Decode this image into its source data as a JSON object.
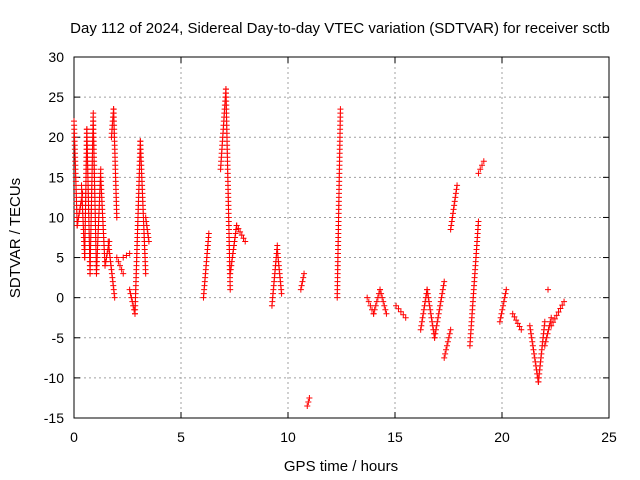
{
  "chart_data": {
    "type": "scatter",
    "title": "Day 112 of 2024, Sidereal Day-to-day VTEC variation (SDTVAR) for receiver sctb",
    "xlabel": "GPS time / hours",
    "ylabel": "SDTVAR / TECUs",
    "xlim": [
      0,
      25
    ],
    "ylim": [
      -15,
      30
    ],
    "xticks": [
      0,
      5,
      10,
      15,
      20,
      25
    ],
    "yticks": [
      -15,
      -10,
      -5,
      0,
      5,
      10,
      15,
      20,
      25,
      30
    ],
    "grid": true,
    "marker": "+",
    "series": [
      {
        "name": "SDTVAR",
        "color": "#ff0000",
        "segments": [
          {
            "x": [
              0.0,
              0.15
            ],
            "y": [
              22,
              9
            ]
          },
          {
            "x": [
              0.15,
              0.4
            ],
            "y": [
              9,
              13
            ]
          },
          {
            "x": [
              0.35,
              0.5
            ],
            "y": [
              14,
              5
            ]
          },
          {
            "x": [
              0.5,
              0.6
            ],
            "y": [
              5,
              21
            ]
          },
          {
            "x": [
              0.6,
              0.75
            ],
            "y": [
              21,
              3
            ]
          },
          {
            "x": [
              0.75,
              0.9
            ],
            "y": [
              3,
              23
            ]
          },
          {
            "x": [
              0.9,
              1.05
            ],
            "y": [
              22,
              3
            ]
          },
          {
            "x": [
              1.05,
              1.25
            ],
            "y": [
              3,
              16
            ]
          },
          {
            "x": [
              1.25,
              1.45
            ],
            "y": [
              15,
              4
            ]
          },
          {
            "x": [
              1.45,
              1.65
            ],
            "y": [
              4,
              7
            ]
          },
          {
            "x": [
              1.6,
              1.9
            ],
            "y": [
              7,
              0
            ]
          },
          {
            "x": [
              1.75,
              1.85
            ],
            "y": [
              20,
              23.5
            ]
          },
          {
            "x": [
              1.85,
              2.0
            ],
            "y": [
              23.5,
              10
            ]
          },
          {
            "x": [
              2.0,
              2.3
            ],
            "y": [
              5,
              3
            ]
          },
          {
            "x": [
              2.3,
              2.6
            ],
            "y": [
              5,
              5.5
            ]
          },
          {
            "x": [
              2.6,
              2.85
            ],
            "y": [
              1,
              -2
            ]
          },
          {
            "x": [
              2.85,
              3.1
            ],
            "y": [
              -2,
              19.5
            ]
          },
          {
            "x": [
              3.1,
              3.35
            ],
            "y": [
              19.5,
              3
            ]
          },
          {
            "x": [
              3.35,
              3.5
            ],
            "y": [
              10,
              7
            ]
          },
          {
            "x": [
              6.05,
              6.3
            ],
            "y": [
              0,
              8
            ]
          },
          {
            "x": [
              6.85,
              7.1
            ],
            "y": [
              16,
              26
            ]
          },
          {
            "x": [
              7.1,
              7.3
            ],
            "y": [
              26,
              1
            ]
          },
          {
            "x": [
              7.3,
              7.6
            ],
            "y": [
              3,
              9
            ]
          },
          {
            "x": [
              7.6,
              8.0
            ],
            "y": [
              9,
              7
            ]
          },
          {
            "x": [
              9.25,
              9.5
            ],
            "y": [
              -1,
              6.5
            ]
          },
          {
            "x": [
              9.5,
              9.7
            ],
            "y": [
              6,
              0.5
            ]
          },
          {
            "x": [
              10.6,
              10.75
            ],
            "y": [
              1,
              3
            ]
          },
          {
            "x": [
              10.9,
              11.0
            ],
            "y": [
              -13.5,
              -12.5
            ]
          },
          {
            "x": [
              12.3,
              12.45
            ],
            "y": [
              0,
              23.5
            ]
          },
          {
            "x": [
              13.7,
              14.0
            ],
            "y": [
              0,
              -2
            ]
          },
          {
            "x": [
              14.0,
              14.3
            ],
            "y": [
              -2,
              1
            ]
          },
          {
            "x": [
              14.3,
              14.6
            ],
            "y": [
              1,
              -2
            ]
          },
          {
            "x": [
              15.05,
              15.5
            ],
            "y": [
              -1,
              -2.5
            ]
          },
          {
            "x": [
              16.2,
              16.5
            ],
            "y": [
              -4,
              1
            ]
          },
          {
            "x": [
              16.5,
              16.85
            ],
            "y": [
              1,
              -5
            ]
          },
          {
            "x": [
              16.85,
              17.3
            ],
            "y": [
              -5,
              2
            ]
          },
          {
            "x": [
              17.3,
              17.6
            ],
            "y": [
              -7.5,
              -4
            ]
          },
          {
            "x": [
              17.6,
              17.9
            ],
            "y": [
              8.5,
              14
            ]
          },
          {
            "x": [
              18.5,
              18.9
            ],
            "y": [
              -6,
              9.5
            ]
          },
          {
            "x": [
              18.9,
              19.15
            ],
            "y": [
              15.5,
              17
            ]
          },
          {
            "x": [
              19.9,
              20.2
            ],
            "y": [
              -3,
              1
            ]
          },
          {
            "x": [
              20.5,
              20.9
            ],
            "y": [
              -2,
              -4
            ]
          },
          {
            "x": [
              21.3,
              21.7
            ],
            "y": [
              -3.5,
              -10.5
            ]
          },
          {
            "x": [
              21.7,
              22.0
            ],
            "y": [
              -10.5,
              -3
            ]
          },
          {
            "x": [
              22.0,
              22.3
            ],
            "y": [
              -6,
              -2.5
            ]
          },
          {
            "x": [
              22.3,
              22.9
            ],
            "y": [
              -3.5,
              -0.5
            ]
          }
        ],
        "isolated_points": [
          {
            "x": 22.15,
            "y": 1
          }
        ]
      }
    ]
  }
}
